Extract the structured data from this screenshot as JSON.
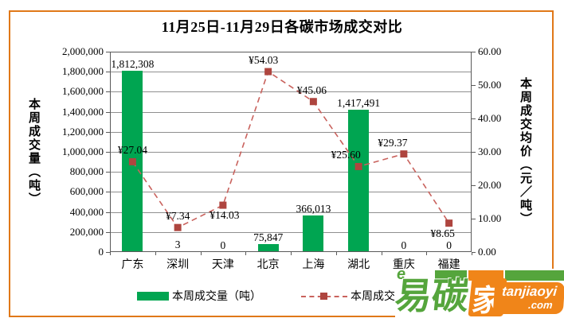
{
  "title": "11月25日-11月29日各碳市场成交对比",
  "chart_data": {
    "type": "bar",
    "subtype": "bar-line combo, dual axis",
    "categories": [
      "广东",
      "深圳",
      "天津",
      "北京",
      "上海",
      "湖北",
      "重庆",
      "福建"
    ],
    "series": [
      {
        "name": "本周成交量（吨）",
        "type": "bar",
        "axis": "left",
        "color": "#00a551",
        "values": [
          1812308,
          3,
          0,
          75847,
          366013,
          1417491,
          0,
          0
        ],
        "labels": [
          "1,812,308",
          "3",
          "0",
          "75,847",
          "366,013",
          "1,417,491",
          "0",
          "0"
        ]
      },
      {
        "name": "本周成交均价（元／吨）",
        "type": "line",
        "axis": "right",
        "color": "#c9625d",
        "marker_color": "#ae453f",
        "values": [
          27.04,
          7.34,
          14.03,
          54.03,
          45.06,
          25.6,
          29.37,
          8.65
        ],
        "labels": [
          "¥27.04",
          "¥7.34",
          "¥14.03",
          "¥54.03",
          "¥45.06",
          "¥25.60",
          "¥29.37",
          "¥8.65"
        ]
      }
    ],
    "left_axis": {
      "title": "本周成交量（吨）",
      "min": 0,
      "max": 2000000,
      "step": 200000
    },
    "right_axis": {
      "title": "本周成交均价（元／吨）",
      "min": 0,
      "max": 60,
      "step": 10
    },
    "grid": true,
    "legend_position": "bottom",
    "price_label_side": [
      "above",
      "above",
      "below",
      "above",
      "above",
      "above",
      "above",
      "below"
    ],
    "price_label_dx": [
      0,
      0,
      2,
      -6,
      -2,
      -16,
      -14,
      -8
    ]
  },
  "legend": {
    "volume": "本周成交量（吨）",
    "price": "本周成交均价（元／吨）"
  },
  "watermark": {
    "cn1": "易",
    "cn2": "碳",
    "cn3": "家",
    "latin": "tanjiaoyi",
    "tld": ".com",
    "swirl": "e"
  },
  "colors": {
    "bar": "#00a551",
    "line": "#c9625d",
    "marker": "#ae453f",
    "frame_border": "#e07818",
    "gridline": "#8f8f8f",
    "axis": "#5a5a5a",
    "logo_green": "#55a53c",
    "logo_orange": "#f08519"
  }
}
